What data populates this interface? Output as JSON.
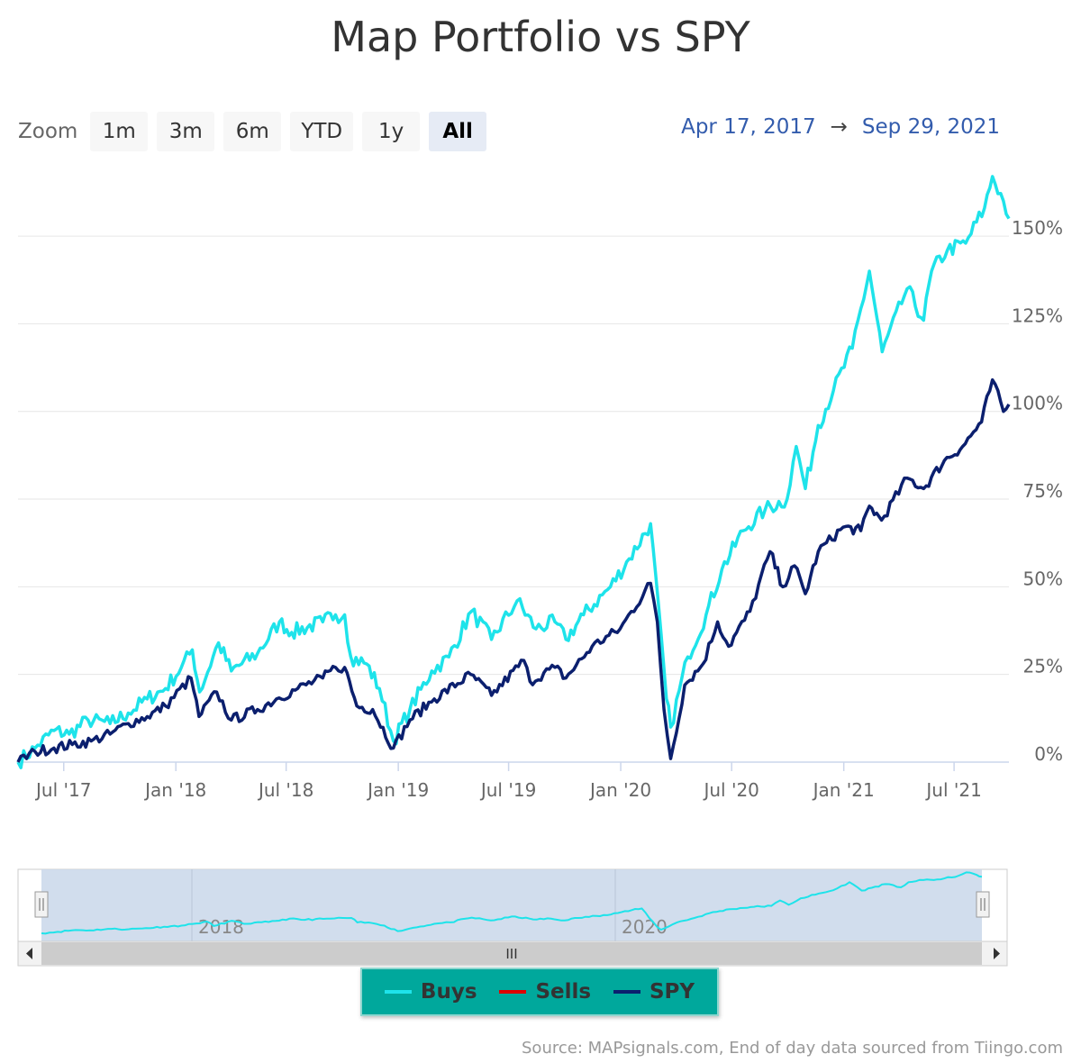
{
  "title": "Map Portfolio vs SPY",
  "zoom": {
    "label": "Zoom",
    "buttons": [
      "1m",
      "3m",
      "6m",
      "YTD",
      "1y",
      "All"
    ],
    "active": "All"
  },
  "range": {
    "from": "Apr 17, 2017",
    "arrow": "→",
    "to": "Sep 29, 2021"
  },
  "navigator": {
    "labels": [
      "2018",
      "2020"
    ],
    "scroll_grip": "III"
  },
  "legend": [
    {
      "name": "Buys",
      "color": "#1ee3ea"
    },
    {
      "name": "Sells",
      "color": "#e00000"
    },
    {
      "name": "SPY",
      "color": "#0b1f6e"
    }
  ],
  "source": "Source: MAPsignals.com, End of day data sourced from Tiingo.com",
  "chart_data": {
    "type": "line",
    "x_range": [
      "2017-04-17",
      "2021-09-29"
    ],
    "ylim": [
      0,
      168
    ],
    "y_ticks": [
      0,
      25,
      50,
      75,
      100,
      125,
      150
    ],
    "y_tick_labels": [
      "0%",
      "25%",
      "50%",
      "75%",
      "100%",
      "125%",
      "150%"
    ],
    "x_ticks": [
      "2017-07-01",
      "2018-01-01",
      "2018-07-01",
      "2019-01-01",
      "2019-07-01",
      "2020-01-01",
      "2020-07-01",
      "2021-01-01",
      "2021-07-01"
    ],
    "x_tick_labels": [
      "Jul '17",
      "Jan '18",
      "Jul '18",
      "Jan '19",
      "Jul '19",
      "Jan '20",
      "Jul '20",
      "Jan '21",
      "Jul '21"
    ],
    "grid": true,
    "series": [
      {
        "name": "Buys",
        "color": "#1ee3ea",
        "points": [
          [
            "2017-04-17",
            0
          ],
          [
            "2017-05-15",
            4
          ],
          [
            "2017-06-15",
            9
          ],
          [
            "2017-07-10",
            8
          ],
          [
            "2017-08-10",
            12
          ],
          [
            "2017-09-15",
            11
          ],
          [
            "2017-10-15",
            14
          ],
          [
            "2017-11-15",
            18
          ],
          [
            "2017-12-15",
            21
          ],
          [
            "2018-01-10",
            27
          ],
          [
            "2018-01-28",
            32
          ],
          [
            "2018-02-09",
            20
          ],
          [
            "2018-03-12",
            34
          ],
          [
            "2018-04-02",
            26
          ],
          [
            "2018-05-15",
            31
          ],
          [
            "2018-06-20",
            40
          ],
          [
            "2018-07-10",
            37
          ],
          [
            "2018-08-30",
            40
          ],
          [
            "2018-09-20",
            42
          ],
          [
            "2018-10-05",
            42
          ],
          [
            "2018-10-15",
            30
          ],
          [
            "2018-11-10",
            28
          ],
          [
            "2018-12-01",
            21
          ],
          [
            "2018-12-24",
            6
          ],
          [
            "2019-01-20",
            15
          ],
          [
            "2019-02-25",
            26
          ],
          [
            "2019-03-25",
            30
          ],
          [
            "2019-05-01",
            43
          ],
          [
            "2019-06-03",
            35
          ],
          [
            "2019-07-15",
            46
          ],
          [
            "2019-08-15",
            38
          ],
          [
            "2019-09-15",
            40
          ],
          [
            "2019-10-03",
            35
          ],
          [
            "2019-11-01",
            42
          ],
          [
            "2019-12-15",
            50
          ],
          [
            "2020-01-15",
            58
          ],
          [
            "2020-02-19",
            68
          ],
          [
            "2020-03-16",
            18
          ],
          [
            "2020-03-23",
            10
          ],
          [
            "2020-04-20",
            30
          ],
          [
            "2020-05-20",
            42
          ],
          [
            "2020-06-15",
            55
          ],
          [
            "2020-07-20",
            66
          ],
          [
            "2020-08-25",
            72
          ],
          [
            "2020-09-30",
            75
          ],
          [
            "2020-10-15",
            90
          ],
          [
            "2020-10-30",
            78
          ],
          [
            "2020-11-20",
            96
          ],
          [
            "2020-12-15",
            106
          ],
          [
            "2021-01-15",
            118
          ],
          [
            "2021-02-12",
            140
          ],
          [
            "2021-03-05",
            117
          ],
          [
            "2021-04-15",
            135
          ],
          [
            "2021-05-12",
            126
          ],
          [
            "2021-05-25",
            140
          ],
          [
            "2021-06-20",
            146
          ],
          [
            "2021-07-20",
            148
          ],
          [
            "2021-08-20",
            158
          ],
          [
            "2021-09-02",
            167
          ],
          [
            "2021-09-20",
            160
          ],
          [
            "2021-09-29",
            155
          ]
        ]
      },
      {
        "name": "SPY",
        "color": "#0b1f6e",
        "points": [
          [
            "2017-04-17",
            0
          ],
          [
            "2017-05-15",
            3
          ],
          [
            "2017-06-15",
            4
          ],
          [
            "2017-07-15",
            5
          ],
          [
            "2017-08-15",
            6
          ],
          [
            "2017-09-15",
            8
          ],
          [
            "2017-10-15",
            11
          ],
          [
            "2017-11-15",
            13
          ],
          [
            "2017-12-15",
            16
          ],
          [
            "2018-01-26",
            24
          ],
          [
            "2018-02-08",
            13
          ],
          [
            "2018-03-09",
            20
          ],
          [
            "2018-04-02",
            12
          ],
          [
            "2018-05-15",
            15
          ],
          [
            "2018-06-15",
            18
          ],
          [
            "2018-07-20",
            21
          ],
          [
            "2018-08-30",
            24
          ],
          [
            "2018-09-20",
            27
          ],
          [
            "2018-10-05",
            27
          ],
          [
            "2018-10-25",
            16
          ],
          [
            "2018-11-20",
            15
          ],
          [
            "2018-12-24",
            4
          ],
          [
            "2019-01-20",
            12
          ],
          [
            "2019-03-01",
            18
          ],
          [
            "2019-04-30",
            25
          ],
          [
            "2019-06-03",
            19
          ],
          [
            "2019-07-26",
            29
          ],
          [
            "2019-08-05",
            23
          ],
          [
            "2019-09-15",
            27
          ],
          [
            "2019-10-03",
            24
          ],
          [
            "2019-11-15",
            33
          ],
          [
            "2019-12-31",
            38
          ],
          [
            "2020-02-19",
            51
          ],
          [
            "2020-03-01",
            40
          ],
          [
            "2020-03-12",
            15
          ],
          [
            "2020-03-23",
            1
          ],
          [
            "2020-04-15",
            22
          ],
          [
            "2020-05-15",
            28
          ],
          [
            "2020-06-08",
            40
          ],
          [
            "2020-06-26",
            33
          ],
          [
            "2020-07-31",
            43
          ],
          [
            "2020-09-02",
            60
          ],
          [
            "2020-09-23",
            50
          ],
          [
            "2020-10-12",
            56
          ],
          [
            "2020-10-30",
            48
          ],
          [
            "2020-11-20",
            60
          ],
          [
            "2020-12-31",
            67
          ],
          [
            "2021-01-29",
            66
          ],
          [
            "2021-02-12",
            73
          ],
          [
            "2021-03-04",
            69
          ],
          [
            "2021-04-15",
            81
          ],
          [
            "2021-05-12",
            78
          ],
          [
            "2021-06-15",
            86
          ],
          [
            "2021-07-15",
            90
          ],
          [
            "2021-08-15",
            97
          ],
          [
            "2021-09-02",
            109
          ],
          [
            "2021-09-20",
            100
          ],
          [
            "2021-09-29",
            102
          ]
        ]
      }
    ]
  }
}
